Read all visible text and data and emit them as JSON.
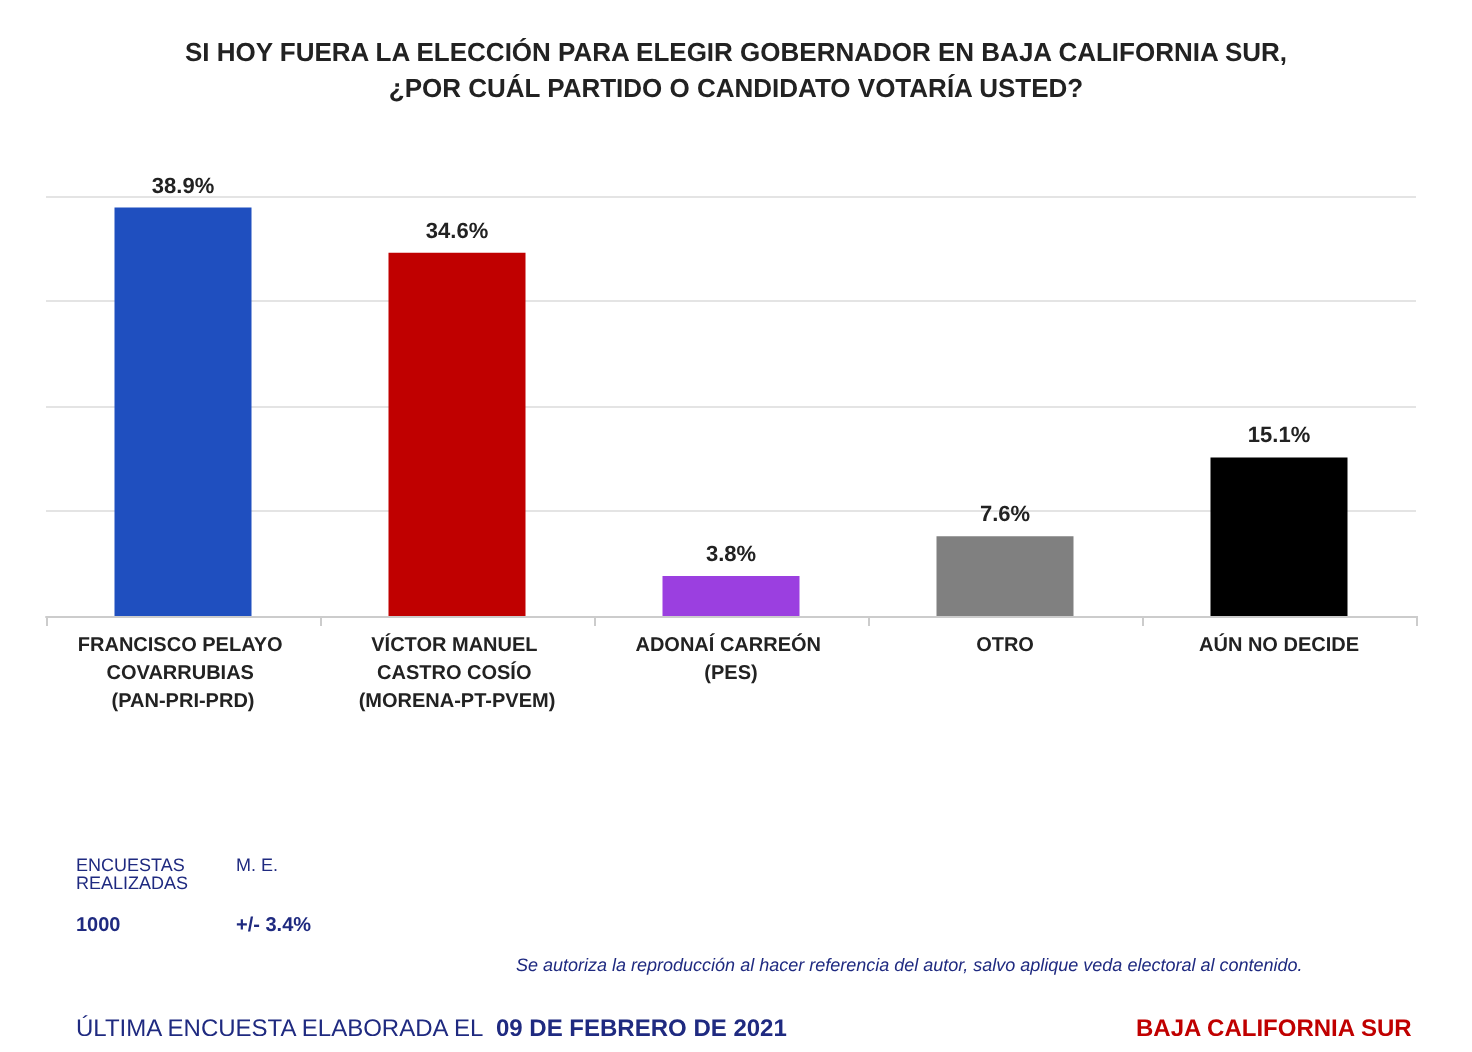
{
  "chart_data": {
    "type": "bar",
    "title": "SI HOY FUERA LA ELECCIÓN PARA ELEGIR GOBERNADOR EN BAJA CALIFORNIA SUR,\n¿POR CUÁL PARTIDO O CANDIDATO VOTARÍA USTED?",
    "categories": [
      "FRANCISCO PELAYO COVARRUBIAS (PAN-PRI-PRD)",
      "VÍCTOR MANUEL CASTRO COSÍO (MORENA-PT-PVEM)",
      "ADONAÍ CARREÓN (PES)",
      "OTRO",
      "AÚN NO DECIDE"
    ],
    "values": [
      38.9,
      34.6,
      3.8,
      7.6,
      15.1
    ],
    "value_labels": [
      "38.9%",
      "34.6%",
      "3.8%",
      "7.6%",
      "15.1%"
    ],
    "colors": [
      "#1f4fbf",
      "#c00000",
      "#9b3fe0",
      "#808080",
      "#000000"
    ],
    "tick_labels": "x",
    "grid": "y",
    "annotations": [
      "ENCUESTAS REALIZADAS",
      "1000",
      "M. E.",
      "+/- 3.4%",
      "Se autoriza la reproducción al hacer referencia del autor, salvo aplique veda electoral al contenido.",
      "ÚLTIMA ENCUESTA ELABORADA EL",
      "09 DE FEBRERO DE 2021",
      "BAJA CALIFORNIA SUR"
    ]
  }
}
